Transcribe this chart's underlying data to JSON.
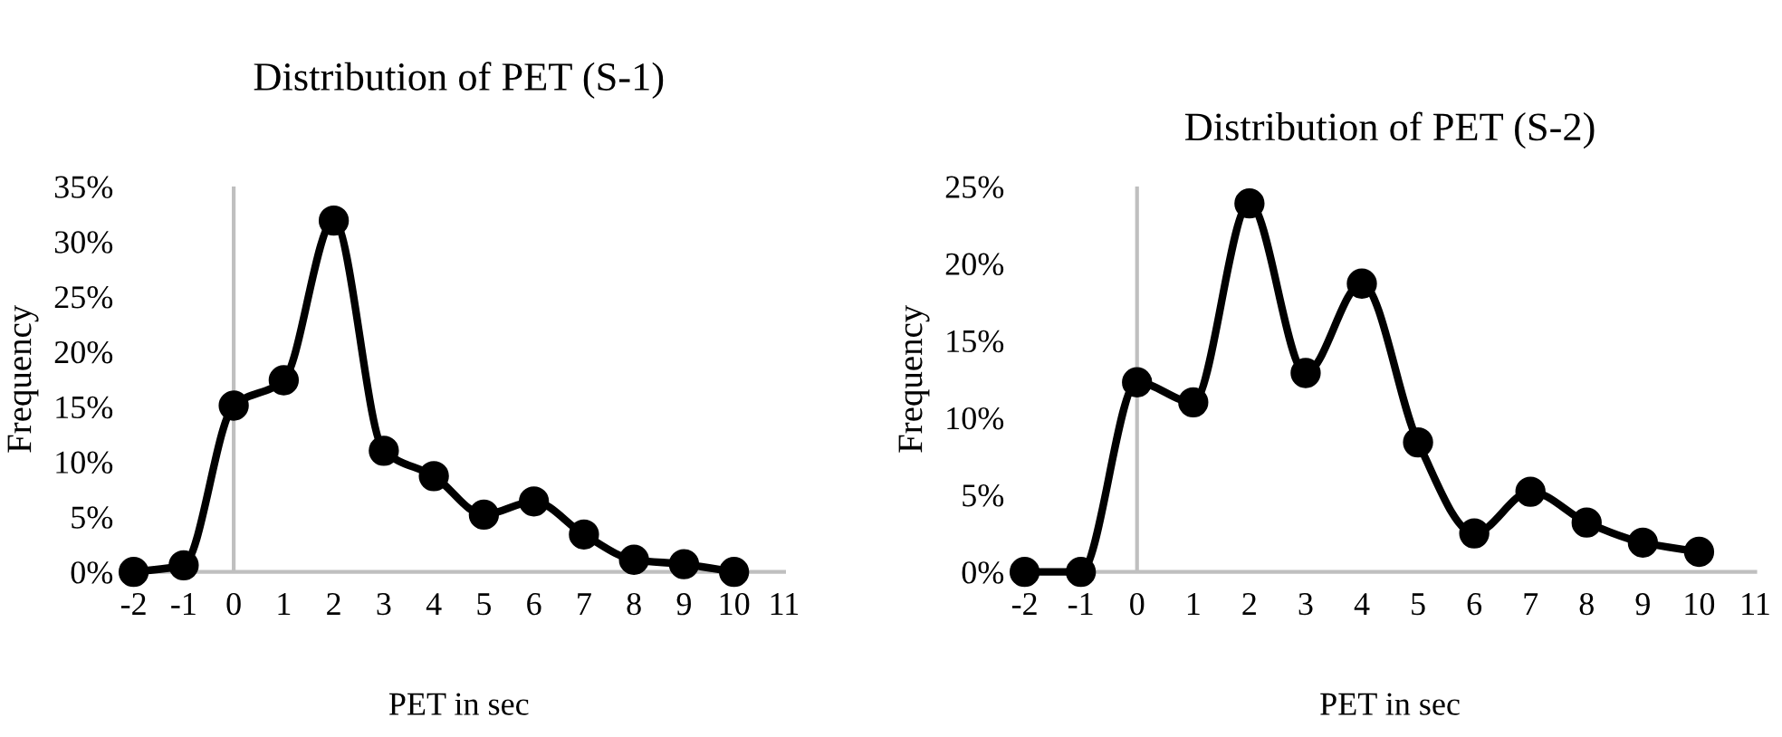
{
  "chart_data": [
    {
      "type": "line",
      "title": "Distribution of PET (S-1)",
      "xlabel": "PET in sec",
      "ylabel": "Frequency",
      "x": [
        -2,
        -1,
        0,
        1,
        2,
        3,
        4,
        5,
        6,
        7,
        8,
        9,
        10
      ],
      "series": [
        {
          "color": "#000000",
          "values": [
            0,
            0.6,
            15.1,
            17.4,
            31.9,
            11.0,
            8.7,
            5.2,
            6.4,
            3.4,
            1.1,
            0.7,
            0.0
          ]
        }
      ],
      "xlim": [
        -2,
        11
      ],
      "xticks": [
        -2,
        -1,
        0,
        1,
        2,
        3,
        4,
        5,
        6,
        7,
        8,
        9,
        10,
        11
      ],
      "ylim": [
        0,
        35
      ],
      "yticks": [
        {
          "value": 0,
          "label": "0%"
        },
        {
          "value": 5,
          "label": "5%"
        },
        {
          "value": 10,
          "label": "10%"
        },
        {
          "value": 15,
          "label": "15%"
        },
        {
          "value": 20,
          "label": "20%"
        },
        {
          "value": 25,
          "label": "25%"
        },
        {
          "value": 30,
          "label": "30%"
        },
        {
          "value": 35,
          "label": "35%"
        }
      ],
      "ref_lines": [
        {
          "axis": "x",
          "value": 0,
          "color": "#bfbfbf"
        }
      ],
      "marker": "circle",
      "line_style": "solid",
      "grid": false,
      "legend": false
    },
    {
      "type": "line",
      "title": "Distribution of PET (S-2)",
      "xlabel": "PET in sec",
      "ylabel": "Frequency",
      "x": [
        -2,
        -1,
        0,
        1,
        2,
        3,
        4,
        5,
        6,
        7,
        8,
        9,
        10
      ],
      "series": [
        {
          "color": "#000000",
          "values": [
            0,
            0,
            12.3,
            11.0,
            23.9,
            12.9,
            18.7,
            8.4,
            2.5,
            5.2,
            3.2,
            1.9,
            1.3
          ]
        }
      ],
      "xlim": [
        -2,
        11
      ],
      "xticks": [
        -2,
        -1,
        0,
        1,
        2,
        3,
        4,
        5,
        6,
        7,
        8,
        9,
        10,
        11
      ],
      "ylim": [
        0,
        25
      ],
      "yticks": [
        {
          "value": 0,
          "label": "0%"
        },
        {
          "value": 5,
          "label": "5%"
        },
        {
          "value": 10,
          "label": "10%"
        },
        {
          "value": 15,
          "label": "15%"
        },
        {
          "value": 20,
          "label": "20%"
        },
        {
          "value": 25,
          "label": "25%"
        }
      ],
      "ref_lines": [
        {
          "axis": "x",
          "value": 0,
          "color": "#bfbfbf"
        }
      ],
      "marker": "circle",
      "line_style": "solid",
      "grid": false,
      "legend": false
    }
  ]
}
